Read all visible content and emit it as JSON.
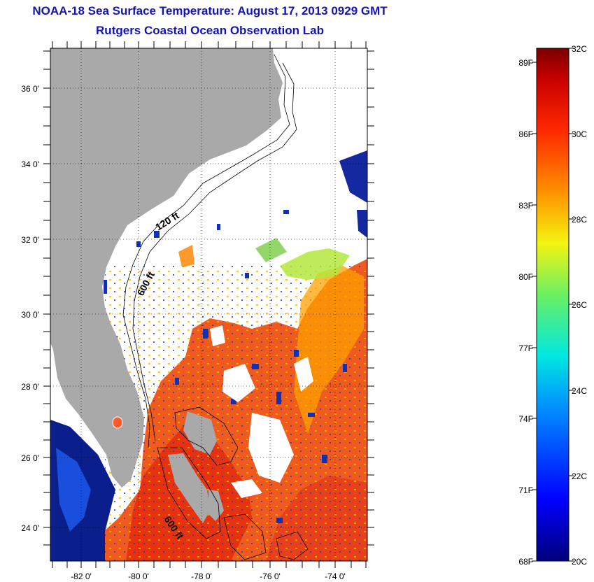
{
  "title": "NOAA-18 Sea Surface Temperature:  August 17, 2013 0929 GMT",
  "subtitle": "Rutgers Coastal Ocean Observation Lab",
  "map": {
    "lat_labels": [
      "36 0'",
      "34 0'",
      "32 0'",
      "30 0'",
      "28 0'",
      "26 0'",
      "24 0'"
    ],
    "lon_labels": [
      "-82 0'",
      "-80 0'",
      "-78 0'",
      "-76 0'",
      "-74 0'"
    ],
    "contour_labels": [
      "120 ft",
      "600 ft",
      "600 ft"
    ],
    "colors": {
      "land": "#a9a9a9",
      "no_data": "#ffffff",
      "warm": "#f05a1e",
      "cool": "#0a1e8c"
    }
  },
  "colorbar": {
    "fahrenheit_labels": [
      "89F",
      "86F",
      "83F",
      "80F",
      "77F",
      "74F",
      "71F",
      "68F"
    ],
    "celsius_labels": [
      "32C",
      "30C",
      "28C",
      "26C",
      "24C",
      "22C",
      "20C"
    ],
    "range_c": [
      20,
      32
    ]
  }
}
